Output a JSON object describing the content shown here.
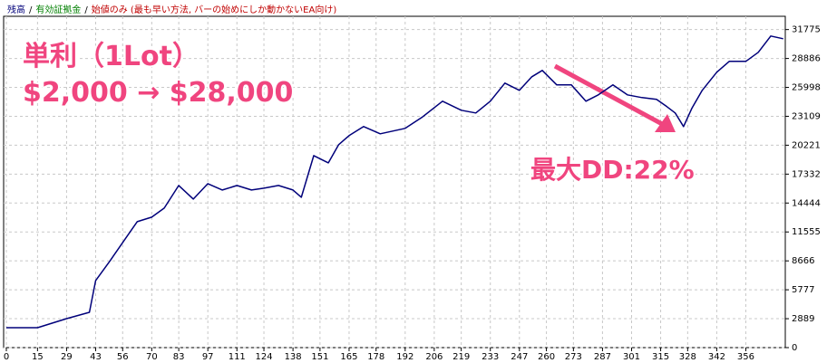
{
  "chart_data": {
    "type": "line",
    "legend": [
      {
        "text": "残高",
        "color": "#00007a"
      },
      {
        "text": "有効証拠金",
        "color": "#008000"
      },
      {
        "text": "始値のみ (最も早い方法, バーの始めにしか動かないEA向け)",
        "color": "#c00000"
      }
    ],
    "legend_separator": "/",
    "annotations": [
      "単利（1Lot）",
      "$2,000 → $28,000",
      "最大DD:22%"
    ],
    "annotation_color": "#f0457f",
    "x": [
      0,
      15,
      29,
      40,
      43,
      50,
      56,
      63,
      70,
      76,
      83,
      90,
      97,
      104,
      111,
      118,
      124,
      131,
      138,
      142,
      148,
      155,
      160,
      165,
      172,
      180,
      192,
      200,
      210,
      219,
      226,
      233,
      240,
      247,
      253,
      258,
      265,
      272,
      279,
      285,
      292,
      299,
      306,
      313,
      318,
      322,
      326,
      330,
      335,
      342,
      348,
      356,
      362,
      368,
      374
    ],
    "series": [
      {
        "color": "#00007a",
        "values": [
          1991,
          1991,
          2896,
          3530,
          6697,
          8688,
          10498,
          12580,
          13032,
          13937,
          16200,
          14842,
          16380,
          15747,
          16200,
          15747,
          15928,
          16200,
          15747,
          15023,
          19186,
          18462,
          20272,
          21177,
          22082,
          21358,
          21901,
          22987,
          24616,
          23711,
          23440,
          24616,
          26426,
          25702,
          27060,
          27693,
          26245,
          26245,
          24616,
          25250,
          26245,
          25250,
          24978,
          24797,
          24073,
          23440,
          22082,
          23892,
          25702,
          27512,
          28598,
          28598,
          29503,
          31132,
          30861
        ]
      }
    ],
    "xlim": [
      0,
      375
    ],
    "ylim": [
      0,
      33100
    ],
    "xticks": [
      0,
      15,
      29,
      43,
      56,
      70,
      83,
      97,
      111,
      124,
      138,
      151,
      165,
      178,
      192,
      206,
      219,
      233,
      247,
      260,
      273,
      287,
      301,
      315,
      328,
      342,
      356
    ],
    "yticks": [
      0,
      2889,
      5777,
      8666,
      11555,
      14444,
      17332,
      20221,
      23109,
      25998,
      28886,
      31775
    ],
    "grid": true
  }
}
